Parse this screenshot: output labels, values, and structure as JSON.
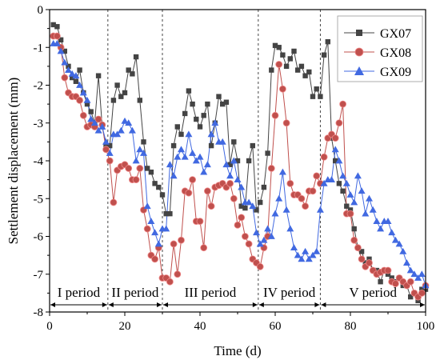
{
  "chart_data": {
    "type": "line",
    "xlabel": "Time (d)",
    "ylabel": "Settlement displacement (mm)",
    "xlim": [
      0,
      100
    ],
    "ylim": [
      -8,
      0
    ],
    "xticks": [
      0,
      20,
      40,
      60,
      80,
      100
    ],
    "yticks": [
      0,
      -1,
      -2,
      -3,
      -4,
      -5,
      -6,
      -7,
      -8
    ],
    "grid": false,
    "legend_position": "top-right",
    "dividers": [
      15.5,
      30,
      55.5,
      72
    ],
    "periods": [
      {
        "label": "I period",
        "start": 0,
        "end": 15.5
      },
      {
        "label": "II period",
        "start": 15.5,
        "end": 30
      },
      {
        "label": "III period",
        "start": 30,
        "end": 55.5
      },
      {
        "label": "IV period",
        "start": 55.5,
        "end": 72
      },
      {
        "label": "V period",
        "start": 72,
        "end": 100
      }
    ],
    "x": [
      1,
      2,
      3,
      4,
      5,
      6,
      7,
      8,
      9,
      10,
      11,
      12,
      13,
      14,
      15,
      16,
      17,
      18,
      19,
      20,
      21,
      22,
      23,
      24,
      25,
      26,
      27,
      28,
      29,
      30,
      31,
      32,
      33,
      34,
      35,
      36,
      37,
      38,
      39,
      40,
      41,
      42,
      43,
      44,
      45,
      46,
      47,
      48,
      49,
      50,
      51,
      52,
      53,
      54,
      55,
      56,
      57,
      58,
      59,
      60,
      61,
      62,
      63,
      64,
      65,
      66,
      67,
      68,
      69,
      70,
      71,
      72,
      73,
      74,
      75,
      76,
      77,
      78,
      79,
      80,
      81,
      82,
      83,
      84,
      85,
      86,
      87,
      88,
      89,
      90,
      91,
      92,
      93,
      94,
      95,
      96,
      97,
      98,
      99,
      100
    ],
    "series": [
      {
        "name": "GX07",
        "color": "#444444",
        "marker": "square",
        "values": [
          -0.4,
          -0.45,
          -0.8,
          -1.1,
          -1.5,
          -1.8,
          -1.9,
          -1.6,
          -2.2,
          -2.5,
          -2.7,
          -3.0,
          -1.75,
          -3.1,
          -3.6,
          -3.6,
          -2.4,
          -2.0,
          -2.3,
          -2.2,
          -1.6,
          -1.7,
          -1.25,
          -2.4,
          -3.5,
          -4.2,
          -4.3,
          -4.6,
          -4.7,
          -4.9,
          -5.4,
          -5.4,
          -3.6,
          -3.1,
          -3.3,
          -2.75,
          -2.15,
          -2.5,
          -2.9,
          -3.1,
          -2.8,
          -2.5,
          -3.6,
          -3.0,
          -2.3,
          -2.5,
          -2.45,
          -4.1,
          -3.5,
          -4.0,
          -5.2,
          -5.25,
          -4.0,
          -3.6,
          -5.3,
          -5.1,
          -4.7,
          -3.8,
          -1.6,
          -0.95,
          -1.0,
          -1.2,
          -1.5,
          -1.3,
          -1.1,
          -1.6,
          -1.5,
          -1.75,
          -1.65,
          -2.3,
          -2.1,
          -2.3,
          -1.2,
          -0.85,
          -3.4,
          -4.0,
          -4.6,
          -4.8,
          -5.2,
          -5.3,
          -5.8,
          -6.3,
          -6.4,
          -6.7,
          -6.6,
          -6.9,
          -6.9,
          -7.2,
          -6.9,
          -7.0,
          -7.1,
          -7.2,
          -7.1,
          -7.3,
          -7.3,
          -7.6,
          -7.5,
          -7.7,
          -7.4,
          -7.4
        ]
      },
      {
        "name": "GX08",
        "color": "#c0504d",
        "marker": "circle",
        "values": [
          -0.7,
          -0.7,
          -1.0,
          -1.8,
          -2.2,
          -2.3,
          -2.3,
          -2.4,
          -2.8,
          -3.1,
          -3.05,
          -3.1,
          -2.9,
          -3.05,
          -3.7,
          -4.0,
          -5.1,
          -4.25,
          -4.15,
          -4.1,
          -4.2,
          -4.5,
          -4.5,
          -4.2,
          -5.3,
          -5.8,
          -6.5,
          -6.6,
          -6.3,
          -7.1,
          -7.1,
          -7.2,
          -6.2,
          -7.0,
          -6.1,
          -4.8,
          -4.85,
          -4.5,
          -5.6,
          -5.6,
          -6.3,
          -4.8,
          -5.2,
          -4.7,
          -4.65,
          -4.6,
          -4.7,
          -4.6,
          -5.0,
          -5.7,
          -5.5,
          -6.0,
          -6.2,
          -6.6,
          -6.7,
          -6.8,
          -6.3,
          -6.0,
          -4.2,
          -2.8,
          -1.45,
          -2.1,
          -3.0,
          -4.6,
          -4.9,
          -4.9,
          -5.0,
          -5.2,
          -4.8,
          -4.8,
          -4.4,
          -4.6,
          -3.9,
          -3.4,
          -3.3,
          -3.4,
          -3.0,
          -2.5,
          -5.4,
          -5.4,
          -6.1,
          -6.3,
          -6.6,
          -6.8,
          -6.7,
          -6.9,
          -7.0,
          -6.95,
          -6.9,
          -6.9,
          -7.2,
          -7.25,
          -7.1,
          -7.2,
          -7.3,
          -7.2,
          -7.5,
          -7.6,
          -7.5,
          -7.3
        ]
      },
      {
        "name": "GX09",
        "color": "#4169e1",
        "marker": "triangle",
        "values": [
          -0.9,
          -0.9,
          -1.1,
          -1.4,
          -1.6,
          -1.7,
          -1.75,
          -2.0,
          -2.2,
          -2.4,
          -2.9,
          -3.0,
          -3.2,
          -3.1,
          -3.5,
          -3.8,
          -3.3,
          -3.3,
          -3.2,
          -2.95,
          -3.0,
          -3.2,
          -4.0,
          -3.7,
          -3.8,
          -5.2,
          -5.6,
          -5.9,
          -6.2,
          -5.8,
          -5.8,
          -4.1,
          -4.4,
          -3.9,
          -3.7,
          -3.9,
          -3.3,
          -3.8,
          -4.0,
          -3.9,
          -4.3,
          -4.1,
          -3.3,
          -3.0,
          -3.5,
          -3.5,
          -4.1,
          -4.4,
          -4.0,
          -4.5,
          -4.7,
          -5.1,
          -5.1,
          -5.2,
          -5.9,
          -6.2,
          -6.1,
          -5.8,
          -6.0,
          -5.4,
          -5.0,
          -4.3,
          -5.3,
          -5.8,
          -6.3,
          -6.5,
          -6.6,
          -6.4,
          -6.6,
          -6.5,
          -6.4,
          -5.3,
          -4.6,
          -4.5,
          -4.5,
          -3.7,
          -4.0,
          -4.4,
          -4.6,
          -4.9,
          -5.1,
          -4.4,
          -4.8,
          -5.4,
          -5.0,
          -5.3,
          -5.6,
          -5.8,
          -5.6,
          -5.6,
          -5.9,
          -6.1,
          -6.2,
          -6.4,
          -6.7,
          -6.9,
          -7.0,
          -7.1,
          -7.0,
          -7.3
        ]
      }
    ]
  }
}
